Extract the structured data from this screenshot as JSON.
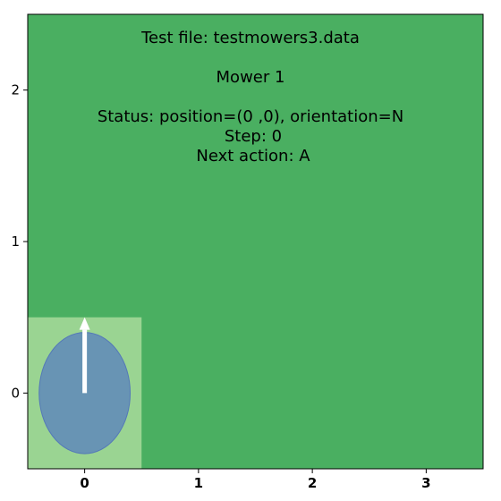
{
  "chart_data": {
    "type": "heatmap",
    "title_lines": [
      "Test file: testmowers3.data",
      "Mower 1",
      "Status: position=(0 ,0), orientation=N"
    ],
    "step_text": "Step: 0",
    "next_action_text": "Next action: A",
    "xlim": [
      -0.5,
      3.5
    ],
    "ylim": [
      -0.5,
      2.5
    ],
    "x_ticks": [
      {
        "value": 0,
        "label": "0"
      },
      {
        "value": 1,
        "label": "1"
      },
      {
        "value": 2,
        "label": "2"
      },
      {
        "value": 3,
        "label": "3"
      }
    ],
    "y_ticks": [
      {
        "value": 0,
        "label": "0"
      },
      {
        "value": 1,
        "label": "1"
      },
      {
        "value": 2,
        "label": "2"
      }
    ],
    "lawn": {
      "x_min": -0.5,
      "x_max": 3.5,
      "y_min": -0.5,
      "y_max": 2.5,
      "color": "#4aaf61"
    },
    "mowed_cells": [
      {
        "x": 0,
        "y": 0,
        "color": "#9ad492"
      }
    ],
    "mower": {
      "x": 0,
      "y": 0,
      "orientation": "N",
      "radius": 0.4,
      "body_color": "#6894b4",
      "edge_color": "#5478b8",
      "arrow_color": "#ffffff",
      "arrow_length": 0.5
    },
    "grid": false
  }
}
